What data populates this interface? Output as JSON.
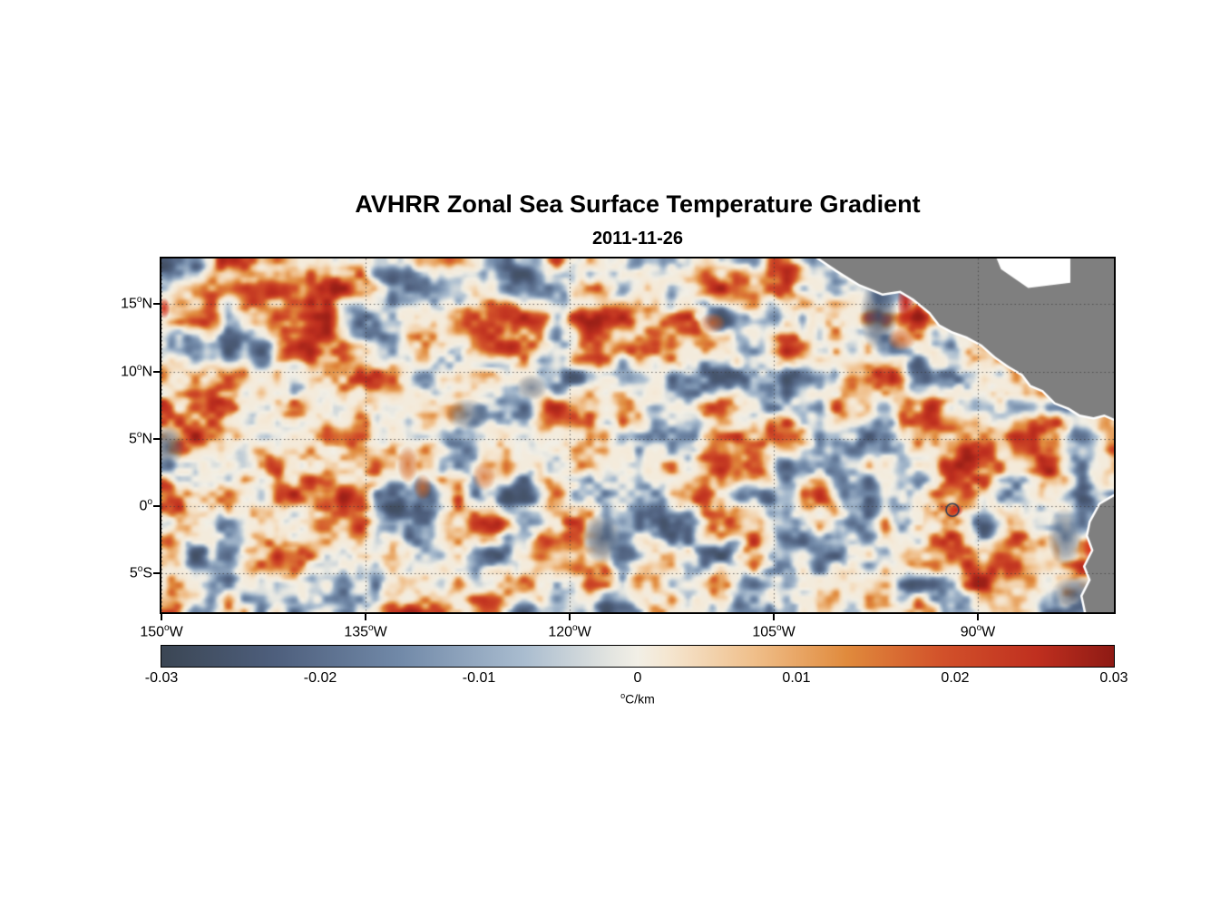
{
  "chart_data": {
    "type": "heatmap",
    "title": "AVHRR Zonal Sea Surface Temperature Gradient",
    "subtitle_date": "2011-11-26",
    "deg_symbol": "o",
    "x_axis": {
      "range_deg_lon": [
        -150,
        -80
      ],
      "grid_lons": [
        -150,
        -135,
        -120,
        -105,
        -90
      ],
      "ticks": [
        {
          "num": "150",
          "dir": "W"
        },
        {
          "num": "135",
          "dir": "W"
        },
        {
          "num": "120",
          "dir": "W"
        },
        {
          "num": "105",
          "dir": "W"
        },
        {
          "num": "90",
          "dir": "W"
        }
      ]
    },
    "y_axis": {
      "range_deg_lat": [
        -7.9,
        18.4
      ],
      "grid_lats": [
        15,
        10,
        5,
        0,
        -5
      ],
      "ticks": [
        {
          "num": "15",
          "dir": "N"
        },
        {
          "num": "10",
          "dir": "N"
        },
        {
          "num": "5",
          "dir": "N"
        },
        {
          "num": "0",
          "dir": ""
        },
        {
          "num": "5",
          "dir": "S"
        }
      ]
    },
    "colorbar": {
      "range": [
        -0.03,
        0.03
      ],
      "label": "C/km",
      "ticks": [
        "-0.03",
        "-0.02",
        "-0.01",
        "0",
        "0.01",
        "0.02",
        "0.03"
      ],
      "colormap_stops": [
        {
          "t": 0.0,
          "color": "#3b4654"
        },
        {
          "t": 0.12,
          "color": "#4e5f7d"
        },
        {
          "t": 0.25,
          "color": "#7189a8"
        },
        {
          "t": 0.38,
          "color": "#a9bccf"
        },
        {
          "t": 0.47,
          "color": "#e2e4e0"
        },
        {
          "t": 0.5,
          "color": "#f2efe6"
        },
        {
          "t": 0.53,
          "color": "#f5e7d2"
        },
        {
          "t": 0.62,
          "color": "#f0c08c"
        },
        {
          "t": 0.72,
          "color": "#e08a3c"
        },
        {
          "t": 0.82,
          "color": "#d2512a"
        },
        {
          "t": 0.92,
          "color": "#bf2f1f"
        },
        {
          "t": 1.0,
          "color": "#8e1a14"
        }
      ]
    },
    "grid": {
      "on": true,
      "style": "dotted"
    },
    "land_color": "#7f7f7f",
    "coast_outline_color": "#ffffff",
    "background_value_color": "#f2efe6",
    "render_seed": 7,
    "land_polygons": [
      {
        "name": "central-america",
        "points": [
          [
            -101.9,
            18.6
          ],
          [
            -100.3,
            17.5
          ],
          [
            -98.7,
            16.5
          ],
          [
            -97.0,
            15.8
          ],
          [
            -95.7,
            16.0
          ],
          [
            -94.7,
            15.4
          ],
          [
            -93.5,
            14.4
          ],
          [
            -92.8,
            13.5
          ],
          [
            -91.9,
            13.0
          ],
          [
            -90.8,
            12.6
          ],
          [
            -89.7,
            12.0
          ],
          [
            -88.7,
            11.1
          ],
          [
            -87.7,
            10.4
          ],
          [
            -86.7,
            9.8
          ],
          [
            -86.1,
            9.0
          ],
          [
            -85.2,
            8.6
          ],
          [
            -84.3,
            7.7
          ],
          [
            -83.3,
            7.3
          ],
          [
            -82.5,
            6.8
          ],
          [
            -81.5,
            6.6
          ],
          [
            -80.7,
            6.8
          ],
          [
            -80.0,
            6.5
          ],
          [
            -79.5,
            6.4
          ],
          [
            -79.5,
            18.6
          ]
        ]
      },
      {
        "name": "south-america",
        "points": [
          [
            -79.5,
            1.0
          ],
          [
            -81.0,
            0.1
          ],
          [
            -81.7,
            -1.2
          ],
          [
            -81.9,
            -2.2
          ],
          [
            -81.5,
            -3.3
          ],
          [
            -82.1,
            -4.5
          ],
          [
            -81.7,
            -5.5
          ],
          [
            -82.3,
            -6.7
          ],
          [
            -82.0,
            -8.1
          ],
          [
            -79.5,
            -8.1
          ]
        ]
      }
    ],
    "nodata_polygons": [
      {
        "name": "caribbean-nodata",
        "points": [
          [
            -88.7,
            18.6
          ],
          [
            -83.2,
            18.6
          ],
          [
            -83.2,
            16.6
          ],
          [
            -86.3,
            16.2
          ],
          [
            -88.3,
            17.6
          ]
        ]
      }
    ],
    "notable_features": [
      {
        "desc": "Tehuantepec negative gradient patch",
        "lon": -97.3,
        "lat": 14.2,
        "rx_deg": 1.4,
        "ry_deg": 2.8,
        "color": "#3e4e6a",
        "alpha": 0.9
      },
      {
        "desc": "Tehuantepec strong positive streak",
        "lon": -95.3,
        "lat": 15.1,
        "rx_deg": 0.65,
        "ry_deg": 1.7,
        "color": "#c01c15",
        "alpha": 0.95
      },
      {
        "desc": "orange patch south of Tehuantepec",
        "lon": -95.6,
        "lat": 12.4,
        "rx_deg": 1.1,
        "ry_deg": 0.9,
        "color": "#d96a28",
        "alpha": 0.85
      },
      {
        "desc": "Galapagos strong positive spot",
        "lon": -91.6,
        "lat": -0.3,
        "rx_deg": 0.55,
        "ry_deg": 0.5,
        "color": "#cf1d15",
        "alpha": 0.95,
        "ring": true
      },
      {
        "desc": "coastal positive patch off Peru",
        "lon": -81.6,
        "lat": -3.2,
        "rx_deg": 0.7,
        "ry_deg": 1.1,
        "color": "#d81f15",
        "alpha": 0.95
      },
      {
        "desc": "negative patch offshore Ecuador",
        "lon": -83.6,
        "lat": -2.3,
        "rx_deg": 1.3,
        "ry_deg": 2.2,
        "color": "#41536f",
        "alpha": 0.7
      },
      {
        "desc": "negative region southeast corner",
        "lon": -82.8,
        "lat": -6.6,
        "rx_deg": 1.9,
        "ry_deg": 1.4,
        "color": "#3e4e6a",
        "alpha": 0.8
      },
      {
        "desc": "equatorial negative blob",
        "lon": -117.6,
        "lat": -2.4,
        "rx_deg": 1.5,
        "ry_deg": 1.9,
        "color": "#44546e",
        "alpha": 0.85
      },
      {
        "desc": "negative blob at west edge",
        "lon": -149.6,
        "lat": 4.4,
        "rx_deg": 1.3,
        "ry_deg": 1.6,
        "color": "#44546e",
        "alpha": 0.8
      },
      {
        "desc": "positive spot at west edge 15N",
        "lon": -149.8,
        "lat": 14.7,
        "rx_deg": 0.45,
        "ry_deg": 0.8,
        "color": "#cf2a18",
        "alpha": 0.9
      },
      {
        "desc": "orange streak 132W 3N",
        "lon": -131.9,
        "lat": 3.1,
        "rx_deg": 0.8,
        "ry_deg": 1.4,
        "color": "#d4641f",
        "alpha": 0.8
      },
      {
        "desc": "orange streak 131W 1N",
        "lon": -130.8,
        "lat": 1.4,
        "rx_deg": 0.7,
        "ry_deg": 1.0,
        "color": "#d4641f",
        "alpha": 0.7
      },
      {
        "desc": "negative patch 127W 7N",
        "lon": -127.5,
        "lat": 6.8,
        "rx_deg": 1.6,
        "ry_deg": 1.2,
        "color": "#4a5a74",
        "alpha": 0.7
      },
      {
        "desc": "orange patch 110W 13N",
        "lon": -109.5,
        "lat": 13.6,
        "rx_deg": 1.0,
        "ry_deg": 0.8,
        "color": "#d06023",
        "alpha": 0.75
      },
      {
        "desc": "negative streak 123W 9N",
        "lon": -122.8,
        "lat": 8.8,
        "rx_deg": 1.2,
        "ry_deg": 1.0,
        "color": "#4a5a74",
        "alpha": 0.65
      },
      {
        "desc": "positive blob 126W 2N",
        "lon": -126.3,
        "lat": 2.2,
        "rx_deg": 0.9,
        "ry_deg": 1.1,
        "color": "#d4641f",
        "alpha": 0.7
      }
    ]
  }
}
